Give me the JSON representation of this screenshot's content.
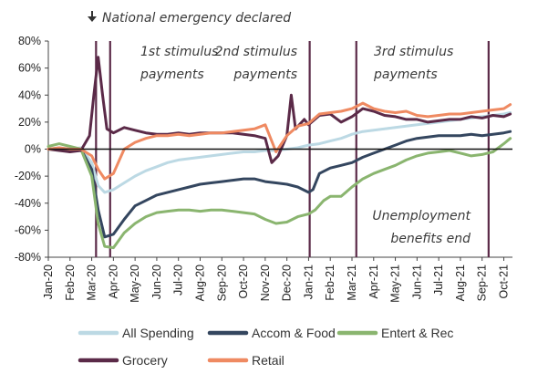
{
  "chart_data": {
    "type": "line",
    "title": "",
    "xlabel": "",
    "ylabel": "",
    "ylim": [
      -80,
      80
    ],
    "y_ticks": [
      -80,
      -60,
      -40,
      -20,
      0,
      20,
      40,
      60,
      80
    ],
    "y_tick_format": "%",
    "grid": false,
    "legend_position": "bottom",
    "x_tick_labels": [
      "Jan-20",
      "Feb-20",
      "Mar-20",
      "Apr-20",
      "May-20",
      "Jun-20",
      "Jul-20",
      "Aug-20",
      "Sep-20",
      "Oct-20",
      "Nov-20",
      "Dec-20",
      "Jan-21",
      "Feb-21",
      "Mar-21",
      "Apr-21",
      "May-21",
      "Jun-21",
      "Jul-21",
      "Aug-21",
      "Sep-21",
      "Oct-21"
    ],
    "annotations": {
      "header_arrow": "down-arrow-icon",
      "header_text": "National emergency declared",
      "stimulus1": [
        "1st stimulus",
        "payments"
      ],
      "stimulus2": [
        "2nd stimulus",
        "payments"
      ],
      "stimulus3": [
        "3rd stimulus",
        "payments"
      ],
      "unemployment": [
        "Unemployment",
        "benefits end"
      ]
    },
    "vertical_markers": [
      {
        "label": "National emergency declared",
        "x": 2.2
      },
      {
        "label": "1st stimulus payments",
        "x": 2.85
      },
      {
        "label": "2nd stimulus payments",
        "x": 12.05
      },
      {
        "label": "3rd stimulus payments",
        "x": 14.2
      },
      {
        "label": "Unemployment benefits end",
        "x": 20.3
      }
    ],
    "series": [
      {
        "name": "All Spending",
        "color": "#bcd9e4",
        "points": [
          [
            0,
            0
          ],
          [
            0.5,
            1
          ],
          [
            1,
            0
          ],
          [
            1.5,
            1
          ],
          [
            2,
            -10
          ],
          [
            2.3,
            -27
          ],
          [
            2.6,
            -32
          ],
          [
            3,
            -30
          ],
          [
            3.5,
            -25
          ],
          [
            4,
            -20
          ],
          [
            4.5,
            -16
          ],
          [
            5,
            -13
          ],
          [
            5.5,
            -10
          ],
          [
            6,
            -8
          ],
          [
            6.5,
            -7
          ],
          [
            7,
            -6
          ],
          [
            7.5,
            -5
          ],
          [
            8,
            -4
          ],
          [
            8.5,
            -3
          ],
          [
            9,
            -2
          ],
          [
            9.5,
            -2
          ],
          [
            10,
            -1
          ],
          [
            10.5,
            -1
          ],
          [
            11,
            0
          ],
          [
            11.5,
            1
          ],
          [
            12,
            3
          ],
          [
            12.5,
            4
          ],
          [
            13,
            6
          ],
          [
            13.5,
            8
          ],
          [
            14,
            11
          ],
          [
            14.5,
            13
          ],
          [
            15,
            14
          ],
          [
            15.5,
            15
          ],
          [
            16,
            16
          ],
          [
            16.5,
            17
          ],
          [
            17,
            18
          ],
          [
            17.5,
            19
          ],
          [
            18,
            20
          ],
          [
            18.5,
            21
          ],
          [
            19,
            22
          ],
          [
            19.5,
            23
          ],
          [
            20,
            24
          ],
          [
            20.5,
            25
          ],
          [
            21,
            26
          ],
          [
            21.3,
            27
          ]
        ]
      },
      {
        "name": "Accom & Food",
        "color": "#34465f",
        "points": [
          [
            0,
            0
          ],
          [
            0.5,
            0
          ],
          [
            1,
            0
          ],
          [
            1.5,
            0
          ],
          [
            2,
            -15
          ],
          [
            2.3,
            -45
          ],
          [
            2.6,
            -65
          ],
          [
            3,
            -63
          ],
          [
            3.5,
            -52
          ],
          [
            4,
            -42
          ],
          [
            4.5,
            -38
          ],
          [
            5,
            -34
          ],
          [
            5.5,
            -32
          ],
          [
            6,
            -30
          ],
          [
            6.5,
            -28
          ],
          [
            7,
            -26
          ],
          [
            7.5,
            -25
          ],
          [
            8,
            -24
          ],
          [
            8.5,
            -23
          ],
          [
            9,
            -22
          ],
          [
            9.5,
            -22
          ],
          [
            10,
            -24
          ],
          [
            10.5,
            -25
          ],
          [
            11,
            -26
          ],
          [
            11.5,
            -28
          ],
          [
            12,
            -32
          ],
          [
            12.2,
            -30
          ],
          [
            12.5,
            -18
          ],
          [
            13,
            -14
          ],
          [
            13.5,
            -12
          ],
          [
            14,
            -10
          ],
          [
            14.5,
            -6
          ],
          [
            15,
            -3
          ],
          [
            15.5,
            0
          ],
          [
            16,
            3
          ],
          [
            16.5,
            6
          ],
          [
            17,
            8
          ],
          [
            17.5,
            9
          ],
          [
            18,
            10
          ],
          [
            18.5,
            10
          ],
          [
            19,
            10
          ],
          [
            19.5,
            11
          ],
          [
            20,
            10
          ],
          [
            20.5,
            11
          ],
          [
            21,
            12
          ],
          [
            21.3,
            13
          ]
        ]
      },
      {
        "name": "Entert & Rec",
        "color": "#8ab56f",
        "points": [
          [
            0,
            2
          ],
          [
            0.5,
            4
          ],
          [
            1,
            2
          ],
          [
            1.5,
            0
          ],
          [
            2,
            -20
          ],
          [
            2.3,
            -55
          ],
          [
            2.6,
            -72
          ],
          [
            3,
            -73
          ],
          [
            3.5,
            -62
          ],
          [
            4,
            -55
          ],
          [
            4.5,
            -50
          ],
          [
            5,
            -47
          ],
          [
            5.5,
            -46
          ],
          [
            6,
            -45
          ],
          [
            6.5,
            -45
          ],
          [
            7,
            -46
          ],
          [
            7.5,
            -45
          ],
          [
            8,
            -45
          ],
          [
            8.5,
            -46
          ],
          [
            9,
            -47
          ],
          [
            9.5,
            -48
          ],
          [
            10,
            -52
          ],
          [
            10.5,
            -55
          ],
          [
            11,
            -54
          ],
          [
            11.5,
            -50
          ],
          [
            12,
            -48
          ],
          [
            12.3,
            -45
          ],
          [
            12.7,
            -38
          ],
          [
            13,
            -35
          ],
          [
            13.5,
            -35
          ],
          [
            14,
            -28
          ],
          [
            14.5,
            -22
          ],
          [
            15,
            -18
          ],
          [
            15.5,
            -15
          ],
          [
            16,
            -12
          ],
          [
            16.5,
            -8
          ],
          [
            17,
            -5
          ],
          [
            17.5,
            -3
          ],
          [
            18,
            -2
          ],
          [
            18.5,
            -1
          ],
          [
            19,
            -3
          ],
          [
            19.5,
            -5
          ],
          [
            20,
            -4
          ],
          [
            20.5,
            -2
          ],
          [
            21,
            4
          ],
          [
            21.3,
            8
          ]
        ]
      },
      {
        "name": "Grocery",
        "color": "#5b2a48",
        "points": [
          [
            0,
            0
          ],
          [
            0.5,
            -1
          ],
          [
            1,
            -2
          ],
          [
            1.5,
            -1
          ],
          [
            1.9,
            10
          ],
          [
            2.1,
            40
          ],
          [
            2.3,
            68
          ],
          [
            2.5,
            40
          ],
          [
            2.7,
            15
          ],
          [
            3,
            12
          ],
          [
            3.5,
            16
          ],
          [
            4,
            14
          ],
          [
            4.5,
            12
          ],
          [
            5,
            11
          ],
          [
            5.5,
            11
          ],
          [
            6,
            12
          ],
          [
            6.5,
            11
          ],
          [
            7,
            12
          ],
          [
            7.5,
            12
          ],
          [
            8,
            12
          ],
          [
            8.5,
            12
          ],
          [
            9,
            11
          ],
          [
            9.5,
            10
          ],
          [
            10,
            8
          ],
          [
            10.3,
            -10
          ],
          [
            10.6,
            -5
          ],
          [
            11,
            10
          ],
          [
            11.2,
            40
          ],
          [
            11.4,
            15
          ],
          [
            11.8,
            22
          ],
          [
            12,
            18
          ],
          [
            12.5,
            25
          ],
          [
            13,
            26
          ],
          [
            13.5,
            20
          ],
          [
            14,
            24
          ],
          [
            14.5,
            30
          ],
          [
            15,
            28
          ],
          [
            15.5,
            25
          ],
          [
            16,
            24
          ],
          [
            16.5,
            22
          ],
          [
            17,
            22
          ],
          [
            17.5,
            20
          ],
          [
            18,
            21
          ],
          [
            18.5,
            22
          ],
          [
            19,
            22
          ],
          [
            19.5,
            24
          ],
          [
            20,
            23
          ],
          [
            20.5,
            25
          ],
          [
            21,
            24
          ],
          [
            21.3,
            26
          ]
        ]
      },
      {
        "name": "Retail",
        "color": "#ef8a62",
        "points": [
          [
            0,
            0
          ],
          [
            0.5,
            1
          ],
          [
            1,
            0
          ],
          [
            1.5,
            0
          ],
          [
            2,
            -5
          ],
          [
            2.3,
            -15
          ],
          [
            2.6,
            -22
          ],
          [
            3,
            -18
          ],
          [
            3.5,
            0
          ],
          [
            4,
            5
          ],
          [
            4.5,
            8
          ],
          [
            5,
            10
          ],
          [
            5.5,
            10
          ],
          [
            6,
            11
          ],
          [
            6.5,
            10
          ],
          [
            7,
            11
          ],
          [
            7.5,
            12
          ],
          [
            8,
            12
          ],
          [
            8.5,
            13
          ],
          [
            9,
            14
          ],
          [
            9.5,
            15
          ],
          [
            10,
            18
          ],
          [
            10.5,
            -2
          ],
          [
            11,
            10
          ],
          [
            11.5,
            17
          ],
          [
            12,
            19
          ],
          [
            12.5,
            26
          ],
          [
            13,
            27
          ],
          [
            13.5,
            28
          ],
          [
            14,
            30
          ],
          [
            14.5,
            34
          ],
          [
            15,
            30
          ],
          [
            15.5,
            28
          ],
          [
            16,
            27
          ],
          [
            16.5,
            28
          ],
          [
            17,
            25
          ],
          [
            17.5,
            24
          ],
          [
            18,
            25
          ],
          [
            18.5,
            26
          ],
          [
            19,
            26
          ],
          [
            19.5,
            27
          ],
          [
            20,
            28
          ],
          [
            20.5,
            29
          ],
          [
            21,
            30
          ],
          [
            21.3,
            33
          ]
        ]
      }
    ],
    "legend": [
      {
        "name": "All Spending",
        "color": "#bcd9e4"
      },
      {
        "name": "Accom & Food",
        "color": "#34465f"
      },
      {
        "name": "Entert & Rec",
        "color": "#8ab56f"
      },
      {
        "name": "Grocery",
        "color": "#5b2a48"
      },
      {
        "name": "Retail",
        "color": "#ef8a62"
      }
    ]
  }
}
